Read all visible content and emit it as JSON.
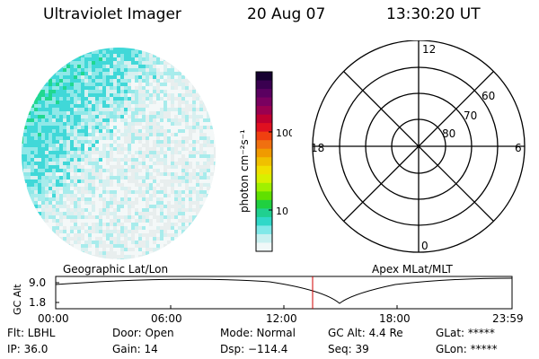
{
  "header": {
    "instrument": "Ultraviolet Imager",
    "date": "20 Aug 07",
    "time": "13:30:20 UT"
  },
  "colorbar": {
    "ticks": [
      "100",
      "10"
    ],
    "unit_label": "photon cm⁻²s⁻¹",
    "colors": [
      "#160030",
      "#3a0050",
      "#5a0060",
      "#7a0060",
      "#9a0050",
      "#c00030",
      "#e01020",
      "#f04010",
      "#f07010",
      "#f09a00",
      "#f0c000",
      "#f0e000",
      "#d8f000",
      "#a0f000",
      "#60e000",
      "#20d040",
      "#20d090",
      "#30d8c8",
      "#80e8e8",
      "#c8f0f0",
      "#f0f8f8"
    ]
  },
  "polar_plot": {
    "clock_labels": {
      "top": "12",
      "bottom": "0",
      "left": "18",
      "right": "6"
    },
    "lat_labels": [
      "60",
      "70",
      "80"
    ]
  },
  "map_labels": {
    "left": "Geographic Lat/Lon",
    "right": "Apex MLat/MLT"
  },
  "timeline": {
    "y_axis_label": "GC Alt",
    "y_ticks": [
      "9.0",
      "1.8"
    ],
    "x_ticks": [
      "00:00",
      "06:00",
      "12:00",
      "18:00",
      "23:59"
    ],
    "marker_time": "13:30"
  },
  "status": {
    "flt": "Flt: LBHL",
    "ip": "IP: 36.0",
    "door": "Door: Open",
    "gain": "Gain: 14",
    "mode": "Mode: Normal",
    "dsp": "Dsp: −114.4",
    "gc_alt": "GC Alt: 4.4 Re",
    "seq": "Seq: 39",
    "glat": "GLat: *****",
    "glon": "GLon: *****"
  }
}
